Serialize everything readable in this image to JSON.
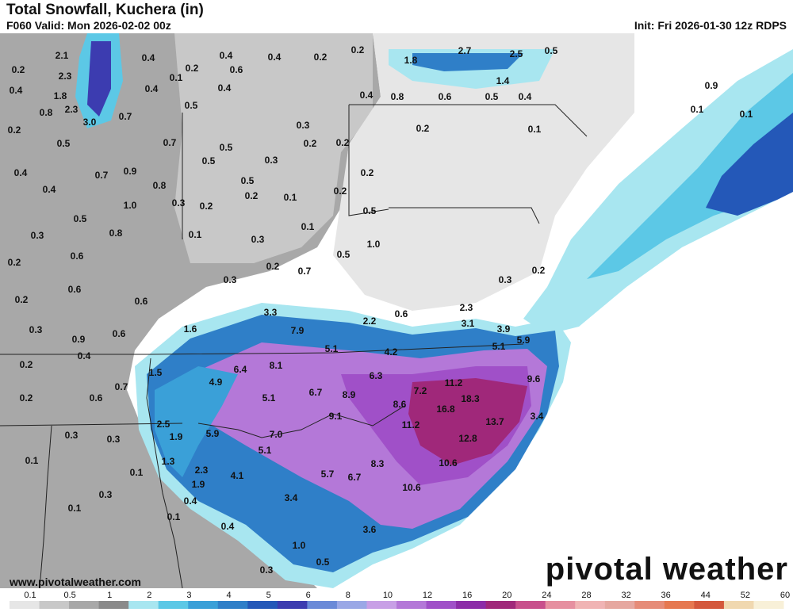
{
  "header": {
    "title": "Total Snowfall, Kuchera (in)",
    "valid": "F060 Valid: Mon 2026-02-02 00z",
    "init": "Init: Fri 2026-01-30 12z RDPS"
  },
  "footer": {
    "url": "www.pivotalweather.com",
    "brand": "pivotal weather"
  },
  "colorbar": {
    "ticks": [
      "0.1",
      "0.5",
      "1",
      "2",
      "3",
      "4",
      "5",
      "6",
      "8",
      "10",
      "12",
      "16",
      "20",
      "24",
      "28",
      "32",
      "36",
      "44",
      "52",
      "60"
    ],
    "colors": [
      "#e6e6e6",
      "#c8c8c8",
      "#a8a8a8",
      "#8a8a8a",
      "#a8e6f0",
      "#5cc8e6",
      "#3aa0d8",
      "#2f7fc8",
      "#2458b8",
      "#3c3cb0",
      "#6a8ad8",
      "#9aa8e6",
      "#c8a0e6",
      "#b478d8",
      "#a050c8",
      "#8c2ca8",
      "#a0287a",
      "#c8508c",
      "#e690a0",
      "#f0b4b4",
      "#e6a8a0",
      "#e68c78",
      "#e67850",
      "#d4583c",
      "#f0d8b0",
      "#f8f0d8"
    ]
  },
  "map_labels": [
    {
      "v": "2.1"
    },
    {
      "v": "2.3"
    },
    {
      "v": "1.8"
    },
    {
      "v": "2.3"
    },
    {
      "v": "3.0"
    },
    {
      "v": "0.4"
    },
    {
      "v": "0.4"
    },
    {
      "v": "0.4"
    },
    {
      "v": "0.2"
    },
    {
      "v": "0.2"
    },
    {
      "v": "0.4"
    },
    {
      "v": "0.2"
    },
    {
      "v": "0.6"
    },
    {
      "v": "0.4"
    },
    {
      "v": "0.2"
    },
    {
      "v": "0.8"
    },
    {
      "v": "0.5"
    },
    {
      "v": "0.7"
    },
    {
      "v": "0.7"
    },
    {
      "v": "0.5"
    },
    {
      "v": "0.4"
    },
    {
      "v": "0.7"
    },
    {
      "v": "0.9"
    },
    {
      "v": "0.8"
    },
    {
      "v": "0.4"
    },
    {
      "v": "0.5"
    },
    {
      "v": "1.0"
    },
    {
      "v": "0.3"
    },
    {
      "v": "0.2"
    },
    {
      "v": "0.5"
    },
    {
      "v": "0.8"
    },
    {
      "v": "0.3"
    },
    {
      "v": "0.6"
    },
    {
      "v": "0.2"
    },
    {
      "v": "0.1"
    },
    {
      "v": "0.2"
    },
    {
      "v": "0.4"
    },
    {
      "v": "0.6"
    },
    {
      "v": "0.6"
    },
    {
      "v": "0.3"
    },
    {
      "v": "0.2"
    },
    {
      "v": "0.5"
    },
    {
      "v": "0.3"
    },
    {
      "v": "0.9"
    },
    {
      "v": "0.6"
    },
    {
      "v": "0.4"
    },
    {
      "v": "0.2"
    },
    {
      "v": "0.6"
    },
    {
      "v": "0.7"
    },
    {
      "v": "0.2"
    },
    {
      "v": "0.3"
    },
    {
      "v": "0.3"
    },
    {
      "v": "0.1"
    },
    {
      "v": "0.1"
    },
    {
      "v": "0.3"
    },
    {
      "v": "0.1"
    },
    {
      "v": "0.1"
    },
    {
      "v": "0.4"
    },
    {
      "v": "0.4"
    },
    {
      "v": "0.3"
    },
    {
      "v": "0.3"
    },
    {
      "v": "0.5"
    },
    {
      "v": "0.3"
    },
    {
      "v": "0.2"
    },
    {
      "v": "0.3"
    },
    {
      "v": "0.2"
    },
    {
      "v": "0.2"
    },
    {
      "v": "0.2"
    },
    {
      "v": "0.1"
    },
    {
      "v": "0.1"
    },
    {
      "v": "0.2"
    },
    {
      "v": "0.4"
    },
    {
      "v": "0.8"
    },
    {
      "v": "0.6"
    },
    {
      "v": "0.5"
    },
    {
      "v": "0.4"
    },
    {
      "v": "0.2"
    },
    {
      "v": "0.1"
    },
    {
      "v": "0.5"
    },
    {
      "v": "0.2"
    },
    {
      "v": "0.1"
    },
    {
      "v": "1.0"
    },
    {
      "v": "0.5"
    },
    {
      "v": "0.7"
    },
    {
      "v": "1.8"
    },
    {
      "v": "2.7"
    },
    {
      "v": "2.5"
    },
    {
      "v": "0.5"
    },
    {
      "v": "1.4"
    },
    {
      "v": "0.3"
    },
    {
      "v": "0.9"
    },
    {
      "v": "0.1"
    },
    {
      "v": "0.1"
    },
    {
      "v": "0.2"
    },
    {
      "v": "0.6"
    },
    {
      "v": "2.3"
    },
    {
      "v": "3.1"
    },
    {
      "v": "3.3"
    },
    {
      "v": "7.9"
    },
    {
      "v": "1.6"
    },
    {
      "v": "2.2"
    },
    {
      "v": "5.1"
    },
    {
      "v": "4.2"
    },
    {
      "v": "5.1"
    },
    {
      "v": "5.9"
    },
    {
      "v": "3.9"
    },
    {
      "v": "1.5"
    },
    {
      "v": "6.4"
    },
    {
      "v": "8.1"
    },
    {
      "v": "4.9"
    },
    {
      "v": "6.3"
    },
    {
      "v": "5.1"
    },
    {
      "v": "6.7"
    },
    {
      "v": "8.9"
    },
    {
      "v": "7.2"
    },
    {
      "v": "11.2"
    },
    {
      "v": "18.3"
    },
    {
      "v": "9.6"
    },
    {
      "v": "8.6"
    },
    {
      "v": "16.8"
    },
    {
      "v": "2.5"
    },
    {
      "v": "9.1"
    },
    {
      "v": "11.2"
    },
    {
      "v": "13.7"
    },
    {
      "v": "3.4"
    },
    {
      "v": "1.9"
    },
    {
      "v": "5.9"
    },
    {
      "v": "7.0"
    },
    {
      "v": "12.8"
    },
    {
      "v": "1.3"
    },
    {
      "v": "5.1"
    },
    {
      "v": "8.3"
    },
    {
      "v": "10.6"
    },
    {
      "v": "2.3"
    },
    {
      "v": "4.1"
    },
    {
      "v": "5.7"
    },
    {
      "v": "6.7"
    },
    {
      "v": "1.9"
    },
    {
      "v": "10.6"
    },
    {
      "v": "3.4"
    },
    {
      "v": "3.6"
    },
    {
      "v": "1.0"
    },
    {
      "v": "0.5"
    }
  ]
}
